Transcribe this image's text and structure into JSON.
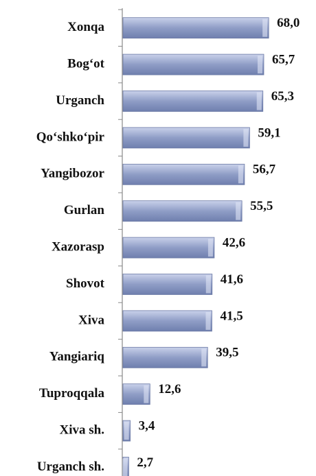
{
  "chart_data": {
    "type": "bar",
    "orientation": "horizontal",
    "color": "#8f9dc6",
    "categories": [
      "Xonqa",
      "Bog‘ot",
      "Urganch",
      "Qo‘shko‘pir",
      "Yangibozor",
      "Gurlan",
      "Xazorasp",
      "Shovot",
      "Xiva",
      "Yangiariq",
      "Tuproqqala",
      "Xiva sh.",
      "Urganch sh."
    ],
    "values": [
      68.0,
      65.7,
      65.3,
      59.1,
      56.7,
      55.5,
      42.6,
      41.6,
      41.5,
      39.5,
      12.6,
      3.4,
      2.7
    ],
    "value_labels": [
      "68,0",
      "65,7",
      "65,3",
      "59,1",
      "56,7",
      "55,5",
      "42,6",
      "41,6",
      "41,5",
      "39,5",
      "12,6",
      "3,4",
      "2,7"
    ]
  }
}
